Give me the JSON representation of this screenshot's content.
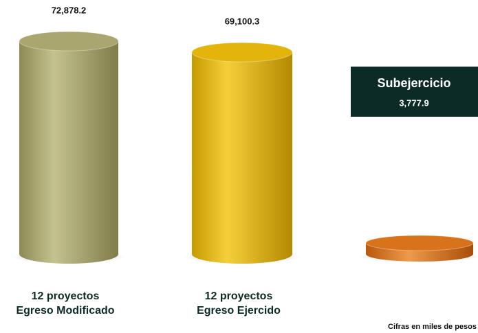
{
  "chart_data": {
    "type": "cylinder",
    "categories": [
      [
        "12 proyectos",
        "Egreso Modificado"
      ],
      [
        "12 proyectos",
        "Egreso Ejercido"
      ],
      [
        "Subejercicio"
      ]
    ],
    "values": [
      72878.2,
      69100.3,
      3777.9
    ],
    "value_labels": [
      "72,878.2",
      "69,100.3",
      "3,777.9"
    ],
    "colors": [
      "#a9a66f",
      "#e2b40c",
      "#d8731c"
    ],
    "footnote": "Cifras en miles de pesos"
  }
}
